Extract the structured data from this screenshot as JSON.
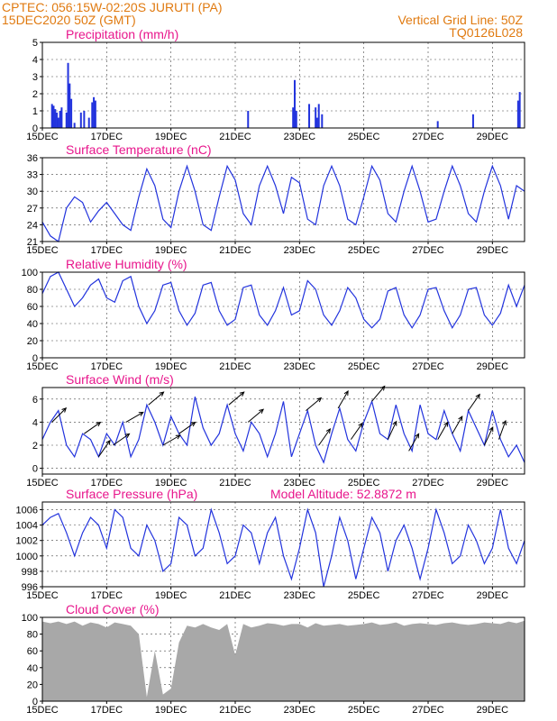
{
  "header": {
    "line1": "CPTEC:   056:15W-02:20S   JURUTI (PA)",
    "line2": "15DEC2020 50Z (GMT)",
    "right1": "Vertical Grid Line: 50Z",
    "right2": "TQ0126L028"
  },
  "colors": {
    "header": "#e07a10",
    "title": "#e8168c",
    "series": "#2233dd",
    "cloud": "#a8a8a8"
  },
  "x_tick_labels": [
    "15DEC",
    "17DEC",
    "19DEC",
    "21DEC",
    "23DEC",
    "25DEC",
    "27DEC",
    "29DEC"
  ],
  "x_days": [
    0,
    2,
    4,
    6,
    8,
    10,
    12,
    14
  ],
  "x_range_days": [
    0,
    15
  ],
  "chart_data": [
    {
      "id": "precip",
      "type": "bar",
      "title": "Precipitation (mm/h)",
      "ylim": [
        0,
        5
      ],
      "yticks": [
        0,
        1,
        2,
        3,
        4,
        5
      ],
      "bars": [
        [
          0.3,
          1.4
        ],
        [
          0.35,
          1.3
        ],
        [
          0.4,
          1.1
        ],
        [
          0.45,
          0.9
        ],
        [
          0.5,
          0.6
        ],
        [
          0.55,
          1.0
        ],
        [
          0.6,
          1.2
        ],
        [
          0.75,
          0.9
        ],
        [
          0.8,
          3.8
        ],
        [
          0.85,
          2.6
        ],
        [
          0.9,
          1.7
        ],
        [
          1.0,
          0.3
        ],
        [
          1.2,
          0.9
        ],
        [
          1.3,
          1.0
        ],
        [
          1.45,
          0.6
        ],
        [
          1.55,
          1.5
        ],
        [
          1.6,
          1.8
        ],
        [
          1.65,
          1.6
        ],
        [
          6.4,
          1.0
        ],
        [
          7.8,
          1.2
        ],
        [
          7.85,
          2.8
        ],
        [
          7.9,
          1.0
        ],
        [
          8.3,
          1.4
        ],
        [
          8.5,
          1.2
        ],
        [
          8.55,
          0.6
        ],
        [
          8.6,
          1.4
        ],
        [
          8.7,
          0.8
        ],
        [
          12.3,
          0.4
        ],
        [
          13.4,
          0.8
        ],
        [
          14.8,
          1.6
        ],
        [
          14.85,
          2.1
        ]
      ]
    },
    {
      "id": "temp",
      "type": "line",
      "title": "Surface Temperature (nC)",
      "ylim": [
        21,
        36
      ],
      "yticks": [
        21,
        24,
        27,
        30,
        33,
        36
      ],
      "x": [
        0,
        0.25,
        0.5,
        0.75,
        1,
        1.25,
        1.5,
        1.75,
        2,
        2.25,
        2.5,
        2.75,
        3,
        3.25,
        3.5,
        3.75,
        4,
        4.25,
        4.5,
        4.75,
        5,
        5.25,
        5.5,
        5.75,
        6,
        6.25,
        6.5,
        6.75,
        7,
        7.25,
        7.5,
        7.75,
        8,
        8.25,
        8.5,
        8.75,
        9,
        9.25,
        9.5,
        9.75,
        10,
        10.25,
        10.5,
        10.75,
        11,
        11.25,
        11.5,
        11.75,
        12,
        12.25,
        12.5,
        12.75,
        13,
        13.25,
        13.5,
        13.75,
        14,
        14.25,
        14.5,
        14.75,
        15
      ],
      "values": [
        24.5,
        22,
        21,
        27,
        29,
        28,
        24.5,
        26.5,
        28,
        26,
        24,
        23,
        29,
        34,
        31,
        25,
        23.5,
        30,
        34.5,
        30,
        24,
        23,
        29,
        34.5,
        32,
        26,
        24,
        31,
        34.5,
        31,
        26,
        32.5,
        31.5,
        25,
        24,
        31,
        34.5,
        31,
        25,
        24,
        29,
        34.5,
        32,
        26,
        24.5,
        30,
        34.5,
        30,
        24.5,
        25,
        30,
        34.5,
        31,
        26,
        24.5,
        30,
        34.5,
        31,
        25,
        31,
        30
      ]
    },
    {
      "id": "rh",
      "type": "line",
      "title": "Relative Humidity (%)",
      "ylim": [
        0,
        100
      ],
      "yticks": [
        0,
        20,
        40,
        60,
        80,
        100
      ],
      "x": [
        0,
        0.25,
        0.5,
        0.75,
        1,
        1.25,
        1.5,
        1.75,
        2,
        2.25,
        2.5,
        2.75,
        3,
        3.25,
        3.5,
        3.75,
        4,
        4.25,
        4.5,
        4.75,
        5,
        5.25,
        5.5,
        5.75,
        6,
        6.25,
        6.5,
        6.75,
        7,
        7.25,
        7.5,
        7.75,
        8,
        8.25,
        8.5,
        8.75,
        9,
        9.25,
        9.5,
        9.75,
        10,
        10.25,
        10.5,
        10.75,
        11,
        11.25,
        11.5,
        11.75,
        12,
        12.25,
        12.5,
        12.75,
        13,
        13.25,
        13.5,
        13.75,
        14,
        14.25,
        14.5,
        14.75,
        15
      ],
      "values": [
        75,
        95,
        100,
        80,
        60,
        70,
        85,
        92,
        70,
        65,
        90,
        95,
        60,
        40,
        55,
        85,
        88,
        55,
        38,
        52,
        85,
        88,
        55,
        38,
        45,
        82,
        85,
        50,
        38,
        55,
        82,
        50,
        55,
        90,
        80,
        50,
        38,
        55,
        82,
        70,
        45,
        35,
        45,
        78,
        82,
        50,
        35,
        50,
        80,
        82,
        55,
        35,
        50,
        80,
        82,
        50,
        38,
        52,
        85,
        60,
        85
      ]
    },
    {
      "id": "wind",
      "type": "line",
      "title": "Surface Wind (m/s)",
      "ylim": [
        -0.5,
        7
      ],
      "yticks": [
        0,
        2,
        4,
        6
      ],
      "x": [
        0,
        0.25,
        0.5,
        0.75,
        1,
        1.25,
        1.5,
        1.75,
        2,
        2.25,
        2.5,
        2.75,
        3,
        3.25,
        3.5,
        3.75,
        4,
        4.25,
        4.5,
        4.75,
        5,
        5.25,
        5.5,
        5.75,
        6,
        6.25,
        6.5,
        6.75,
        7,
        7.25,
        7.5,
        7.75,
        8,
        8.25,
        8.5,
        8.75,
        9,
        9.25,
        9.5,
        9.75,
        10,
        10.25,
        10.5,
        10.75,
        11,
        11.25,
        11.5,
        11.75,
        12,
        12.25,
        12.5,
        12.75,
        13,
        13.25,
        13.5,
        13.75,
        14,
        14.25,
        14.5,
        14.75,
        15
      ],
      "values": [
        2.5,
        4,
        5,
        2,
        1,
        3,
        2.5,
        1,
        3,
        2,
        4,
        1,
        2.5,
        5.5,
        4,
        2,
        4.5,
        3,
        2,
        6.2,
        3.5,
        2,
        3,
        5.5,
        3,
        1.5,
        4,
        3,
        1,
        3,
        5.8,
        1,
        3,
        5,
        2,
        0.5,
        3,
        5.2,
        2.5,
        1.5,
        4,
        5.8,
        3,
        2.5,
        5.5,
        3,
        1.5,
        5.5,
        3,
        2.5,
        5,
        3,
        1.5,
        5,
        3.5,
        2,
        5,
        2.5,
        1,
        2,
        0.5
      ],
      "arrows": [
        [
          0.3,
          -45
        ],
        [
          1.3,
          -35
        ],
        [
          1.75,
          -55
        ],
        [
          2.2,
          -35
        ],
        [
          2.6,
          -30
        ],
        [
          3.3,
          -40
        ],
        [
          3.75,
          -30
        ],
        [
          4.25,
          -35
        ],
        [
          5.8,
          -40
        ],
        [
          6.4,
          -40
        ],
        [
          8.2,
          -40
        ],
        [
          8.6,
          -55
        ],
        [
          9.2,
          -60
        ],
        [
          9.6,
          -55
        ],
        [
          10.25,
          -50
        ],
        [
          10.75,
          -65
        ],
        [
          11.4,
          -60
        ],
        [
          12.3,
          -60
        ],
        [
          12.75,
          -60
        ],
        [
          13.25,
          -55
        ],
        [
          13.75,
          -65
        ],
        [
          14.2,
          -70
        ]
      ]
    },
    {
      "id": "pres",
      "type": "line",
      "title": "Surface Pressure (hPa)",
      "ylim": [
        996,
        1007
      ],
      "yticks": [
        996,
        998,
        1000,
        1002,
        1004,
        1006
      ],
      "x": [
        0,
        0.25,
        0.5,
        0.75,
        1,
        1.25,
        1.5,
        1.75,
        2,
        2.25,
        2.5,
        2.75,
        3,
        3.25,
        3.5,
        3.75,
        4,
        4.25,
        4.5,
        4.75,
        5,
        5.25,
        5.5,
        5.75,
        6,
        6.25,
        6.5,
        6.75,
        7,
        7.25,
        7.5,
        7.75,
        8,
        8.25,
        8.5,
        8.75,
        9,
        9.25,
        9.5,
        9.75,
        10,
        10.25,
        10.5,
        10.75,
        11,
        11.25,
        11.5,
        11.75,
        12,
        12.25,
        12.5,
        12.75,
        13,
        13.25,
        13.5,
        13.75,
        14,
        14.25,
        14.5,
        14.75,
        15
      ],
      "values": [
        1004,
        1005,
        1005.5,
        1003,
        1000,
        1003,
        1005,
        1004,
        1001,
        1006,
        1005,
        1001,
        1000,
        1004,
        1002,
        998,
        999,
        1005,
        1004,
        1000,
        1001,
        1006,
        1003,
        999,
        1000,
        1004,
        1003,
        999,
        1003,
        1005,
        1000,
        997,
        1001,
        1006,
        1003,
        996,
        1000,
        1005,
        1002,
        997,
        1001,
        1005,
        1003,
        998,
        1002,
        1004,
        1001,
        997,
        1001,
        1006,
        1003,
        999,
        1000,
        1004,
        1002,
        999,
        1001,
        1006,
        1001,
        999,
        1002
      ],
      "annotation": "Model Altitude: 52.8872 m"
    },
    {
      "id": "cloud",
      "type": "area",
      "title": "Cloud Cover (%)",
      "ylim": [
        0,
        100
      ],
      "yticks": [
        0,
        20,
        40,
        60,
        80,
        100
      ],
      "x": [
        0,
        0.25,
        0.5,
        0.75,
        1,
        1.25,
        1.5,
        1.75,
        2,
        2.25,
        2.5,
        2.75,
        3,
        3.25,
        3.5,
        3.75,
        4,
        4.25,
        4.5,
        4.75,
        5,
        5.25,
        5.5,
        5.75,
        6,
        6.25,
        6.5,
        6.75,
        7,
        7.25,
        7.5,
        7.75,
        8,
        8.25,
        8.5,
        8.75,
        9,
        9.25,
        9.5,
        9.75,
        10,
        10.25,
        10.5,
        10.75,
        11,
        11.25,
        11.5,
        11.75,
        12,
        12.25,
        12.5,
        12.75,
        13,
        13.25,
        13.5,
        13.75,
        14,
        14.25,
        14.5,
        14.75,
        15
      ],
      "values": [
        95,
        93,
        95,
        92,
        95,
        90,
        94,
        92,
        88,
        94,
        92,
        90,
        80,
        5,
        60,
        8,
        15,
        70,
        90,
        88,
        92,
        88,
        85,
        92,
        55,
        92,
        88,
        90,
        93,
        92,
        90,
        92,
        92,
        88,
        93,
        90,
        91,
        92,
        90,
        91,
        92,
        94,
        91,
        92,
        94,
        90,
        92,
        93,
        92,
        91,
        93,
        94,
        92,
        91,
        92,
        94,
        93,
        92,
        95,
        93,
        96
      ]
    }
  ]
}
